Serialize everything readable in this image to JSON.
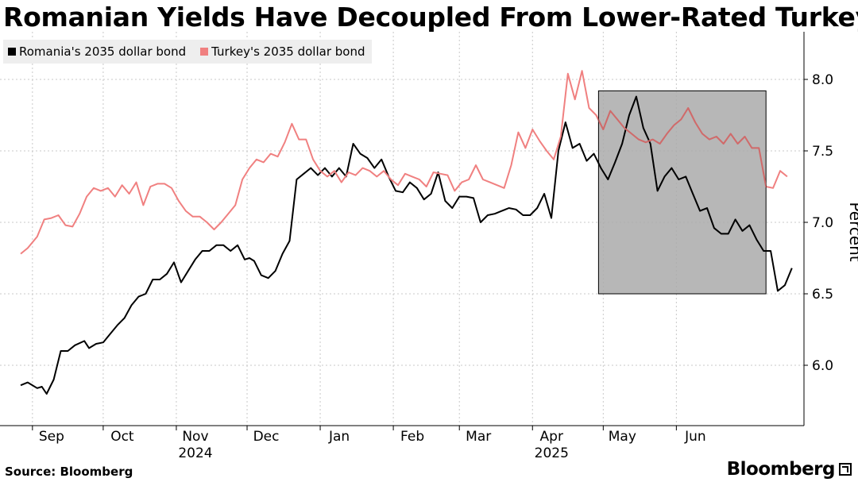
{
  "chart_data": {
    "type": "line",
    "title": "Romanian Yields Have Decoupled From Lower-Rated Turkey",
    "ylabel": "Percent",
    "ylim": [
      5.7,
      8.3
    ],
    "yticks": [
      6.0,
      6.5,
      7.0,
      7.5,
      8.0
    ],
    "ytick_labels": [
      "6.0",
      "6.5",
      "7.0",
      "7.5",
      "8.0"
    ],
    "x_range": [
      "2024-08-27",
      "2025-07-15"
    ],
    "month_ticks": [
      {
        "label": "Sep",
        "date": "2024-09-01"
      },
      {
        "label": "Oct",
        "date": "2024-10-01"
      },
      {
        "label": "Nov",
        "date": "2024-11-01"
      },
      {
        "label": "Dec",
        "date": "2024-12-01"
      },
      {
        "label": "Jan",
        "date": "2025-01-01"
      },
      {
        "label": "Feb",
        "date": "2025-02-01"
      },
      {
        "label": "Mar",
        "date": "2025-03-01"
      },
      {
        "label": "Apr",
        "date": "2025-04-01"
      },
      {
        "label": "May",
        "date": "2025-05-01"
      },
      {
        "label": "Jun",
        "date": "2025-06-01"
      }
    ],
    "year_labels": [
      {
        "label": "2024",
        "date": "2024-11-01"
      },
      {
        "label": "2025",
        "date": "2025-04-01"
      }
    ],
    "grid": "vertical dotted at month starts, horizontal dotted at y ticks",
    "legend_position": "top-left",
    "shaded_region": {
      "x_start": "2025-04-29",
      "x_end": "2025-07-09",
      "y_start": 6.5,
      "y_end": 7.92,
      "color": "#aaaaaa"
    },
    "series": [
      {
        "name": "Romania's 2035 dollar bond",
        "color": "#000000",
        "points": [
          [
            "2024-08-27",
            5.86
          ],
          [
            "2024-08-30",
            5.88
          ],
          [
            "2024-09-03",
            5.84
          ],
          [
            "2024-09-05",
            5.85
          ],
          [
            "2024-09-07",
            5.8
          ],
          [
            "2024-09-10",
            5.9
          ],
          [
            "2024-09-13",
            6.1
          ],
          [
            "2024-09-16",
            6.1
          ],
          [
            "2024-09-19",
            6.14
          ],
          [
            "2024-09-23",
            6.17
          ],
          [
            "2024-09-25",
            6.12
          ],
          [
            "2024-09-28",
            6.15
          ],
          [
            "2024-10-01",
            6.16
          ],
          [
            "2024-10-04",
            6.22
          ],
          [
            "2024-10-07",
            6.28
          ],
          [
            "2024-10-10",
            6.33
          ],
          [
            "2024-10-13",
            6.42
          ],
          [
            "2024-10-16",
            6.48
          ],
          [
            "2024-10-19",
            6.5
          ],
          [
            "2024-10-22",
            6.6
          ],
          [
            "2024-10-25",
            6.6
          ],
          [
            "2024-10-28",
            6.64
          ],
          [
            "2024-10-31",
            6.72
          ],
          [
            "2024-11-03",
            6.58
          ],
          [
            "2024-11-06",
            6.66
          ],
          [
            "2024-11-09",
            6.74
          ],
          [
            "2024-11-12",
            6.8
          ],
          [
            "2024-11-15",
            6.8
          ],
          [
            "2024-11-18",
            6.84
          ],
          [
            "2024-11-21",
            6.84
          ],
          [
            "2024-11-24",
            6.8
          ],
          [
            "2024-11-27",
            6.84
          ],
          [
            "2024-11-30",
            6.74
          ],
          [
            "2024-12-02",
            6.75
          ],
          [
            "2024-12-04",
            6.73
          ],
          [
            "2024-12-07",
            6.63
          ],
          [
            "2024-12-10",
            6.61
          ],
          [
            "2024-12-13",
            6.66
          ],
          [
            "2024-12-16",
            6.78
          ],
          [
            "2024-12-19",
            6.87
          ],
          [
            "2024-12-22",
            7.3
          ],
          [
            "2024-12-25",
            7.34
          ],
          [
            "2024-12-28",
            7.38
          ],
          [
            "2024-12-31",
            7.33
          ],
          [
            "2025-01-03",
            7.38
          ],
          [
            "2025-01-06",
            7.32
          ],
          [
            "2025-01-09",
            7.38
          ],
          [
            "2025-01-12",
            7.32
          ],
          [
            "2025-01-15",
            7.55
          ],
          [
            "2025-01-18",
            7.48
          ],
          [
            "2025-01-21",
            7.45
          ],
          [
            "2025-01-24",
            7.38
          ],
          [
            "2025-01-27",
            7.44
          ],
          [
            "2025-01-30",
            7.32
          ],
          [
            "2025-02-02",
            7.22
          ],
          [
            "2025-02-05",
            7.21
          ],
          [
            "2025-02-08",
            7.28
          ],
          [
            "2025-02-11",
            7.24
          ],
          [
            "2025-02-14",
            7.16
          ],
          [
            "2025-02-17",
            7.2
          ],
          [
            "2025-02-20",
            7.35
          ],
          [
            "2025-02-23",
            7.15
          ],
          [
            "2025-02-26",
            7.1
          ],
          [
            "2025-03-01",
            7.18
          ],
          [
            "2025-03-04",
            7.18
          ],
          [
            "2025-03-07",
            7.17
          ],
          [
            "2025-03-10",
            7.0
          ],
          [
            "2025-03-13",
            7.05
          ],
          [
            "2025-03-16",
            7.06
          ],
          [
            "2025-03-19",
            7.08
          ],
          [
            "2025-03-22",
            7.1
          ],
          [
            "2025-03-25",
            7.09
          ],
          [
            "2025-03-28",
            7.05
          ],
          [
            "2025-03-31",
            7.05
          ],
          [
            "2025-04-03",
            7.1
          ],
          [
            "2025-04-06",
            7.2
          ],
          [
            "2025-04-09",
            7.03
          ],
          [
            "2025-04-12",
            7.5
          ],
          [
            "2025-04-15",
            7.7
          ],
          [
            "2025-04-18",
            7.52
          ],
          [
            "2025-04-21",
            7.55
          ],
          [
            "2025-04-24",
            7.43
          ],
          [
            "2025-04-27",
            7.48
          ],
          [
            "2025-04-30",
            7.38
          ],
          [
            "2025-05-03",
            7.3
          ],
          [
            "2025-05-06",
            7.42
          ],
          [
            "2025-05-09",
            7.55
          ],
          [
            "2025-05-12",
            7.75
          ],
          [
            "2025-05-15",
            7.88
          ],
          [
            "2025-05-18",
            7.66
          ],
          [
            "2025-05-21",
            7.55
          ],
          [
            "2025-05-24",
            7.22
          ],
          [
            "2025-05-27",
            7.32
          ],
          [
            "2025-05-30",
            7.38
          ],
          [
            "2025-06-02",
            7.3
          ],
          [
            "2025-06-05",
            7.32
          ],
          [
            "2025-06-08",
            7.2
          ],
          [
            "2025-06-11",
            7.08
          ],
          [
            "2025-06-14",
            7.1
          ],
          [
            "2025-06-17",
            6.96
          ],
          [
            "2025-06-20",
            6.92
          ],
          [
            "2025-06-23",
            6.92
          ],
          [
            "2025-06-26",
            7.02
          ],
          [
            "2025-06-29",
            6.94
          ],
          [
            "2025-07-02",
            6.98
          ],
          [
            "2025-07-05",
            6.88
          ],
          [
            "2025-07-08",
            6.8
          ],
          [
            "2025-07-11",
            6.8
          ],
          [
            "2025-07-14",
            6.52
          ],
          [
            "2025-07-17",
            6.56
          ],
          [
            "2025-07-20",
            6.68
          ]
        ]
      },
      {
        "name": "Turkey's 2035 dollar bond",
        "color": "#f08080",
        "points": [
          [
            "2024-08-27",
            6.78
          ],
          [
            "2024-08-30",
            6.82
          ],
          [
            "2024-09-03",
            6.9
          ],
          [
            "2024-09-06",
            7.02
          ],
          [
            "2024-09-09",
            7.03
          ],
          [
            "2024-09-12",
            7.05
          ],
          [
            "2024-09-15",
            6.98
          ],
          [
            "2024-09-18",
            6.97
          ],
          [
            "2024-09-21",
            7.06
          ],
          [
            "2024-09-24",
            7.18
          ],
          [
            "2024-09-27",
            7.24
          ],
          [
            "2024-09-30",
            7.22
          ],
          [
            "2024-10-03",
            7.24
          ],
          [
            "2024-10-06",
            7.18
          ],
          [
            "2024-10-09",
            7.26
          ],
          [
            "2024-10-12",
            7.2
          ],
          [
            "2024-10-15",
            7.28
          ],
          [
            "2024-10-18",
            7.12
          ],
          [
            "2024-10-21",
            7.25
          ],
          [
            "2024-10-24",
            7.27
          ],
          [
            "2024-10-27",
            7.27
          ],
          [
            "2024-10-30",
            7.24
          ],
          [
            "2024-11-02",
            7.15
          ],
          [
            "2024-11-05",
            7.08
          ],
          [
            "2024-11-08",
            7.04
          ],
          [
            "2024-11-11",
            7.04
          ],
          [
            "2024-11-14",
            7.0
          ],
          [
            "2024-11-17",
            6.95
          ],
          [
            "2024-11-20",
            7.0
          ],
          [
            "2024-11-23",
            7.06
          ],
          [
            "2024-11-26",
            7.12
          ],
          [
            "2024-11-29",
            7.3
          ],
          [
            "2024-12-02",
            7.38
          ],
          [
            "2024-12-05",
            7.44
          ],
          [
            "2024-12-08",
            7.42
          ],
          [
            "2024-12-11",
            7.48
          ],
          [
            "2024-12-14",
            7.46
          ],
          [
            "2024-12-17",
            7.56
          ],
          [
            "2024-12-20",
            7.69
          ],
          [
            "2024-12-23",
            7.58
          ],
          [
            "2024-12-26",
            7.58
          ],
          [
            "2024-12-29",
            7.44
          ],
          [
            "2025-01-01",
            7.36
          ],
          [
            "2025-01-04",
            7.32
          ],
          [
            "2025-01-07",
            7.36
          ],
          [
            "2025-01-10",
            7.28
          ],
          [
            "2025-01-13",
            7.35
          ],
          [
            "2025-01-16",
            7.33
          ],
          [
            "2025-01-19",
            7.38
          ],
          [
            "2025-01-22",
            7.36
          ],
          [
            "2025-01-25",
            7.32
          ],
          [
            "2025-01-28",
            7.36
          ],
          [
            "2025-01-31",
            7.3
          ],
          [
            "2025-02-03",
            7.26
          ],
          [
            "2025-02-06",
            7.34
          ],
          [
            "2025-02-09",
            7.32
          ],
          [
            "2025-02-12",
            7.3
          ],
          [
            "2025-02-15",
            7.25
          ],
          [
            "2025-02-18",
            7.35
          ],
          [
            "2025-02-21",
            7.34
          ],
          [
            "2025-02-24",
            7.33
          ],
          [
            "2025-02-27",
            7.22
          ],
          [
            "2025-03-02",
            7.28
          ],
          [
            "2025-03-05",
            7.3
          ],
          [
            "2025-03-08",
            7.4
          ],
          [
            "2025-03-11",
            7.3
          ],
          [
            "2025-03-14",
            7.28
          ],
          [
            "2025-03-17",
            7.26
          ],
          [
            "2025-03-20",
            7.24
          ],
          [
            "2025-03-23",
            7.4
          ],
          [
            "2025-03-26",
            7.63
          ],
          [
            "2025-03-29",
            7.52
          ],
          [
            "2025-04-01",
            7.65
          ],
          [
            "2025-04-04",
            7.57
          ],
          [
            "2025-04-07",
            7.5
          ],
          [
            "2025-04-10",
            7.44
          ],
          [
            "2025-04-13",
            7.6
          ],
          [
            "2025-04-16",
            8.04
          ],
          [
            "2025-04-19",
            7.86
          ],
          [
            "2025-04-22",
            8.06
          ],
          [
            "2025-04-25",
            7.8
          ],
          [
            "2025-04-28",
            7.75
          ],
          [
            "2025-05-01",
            7.65
          ],
          [
            "2025-05-04",
            7.78
          ],
          [
            "2025-05-07",
            7.72
          ],
          [
            "2025-05-10",
            7.66
          ],
          [
            "2025-05-13",
            7.62
          ],
          [
            "2025-05-16",
            7.58
          ],
          [
            "2025-05-19",
            7.56
          ],
          [
            "2025-05-22",
            7.58
          ],
          [
            "2025-05-25",
            7.55
          ],
          [
            "2025-05-28",
            7.62
          ],
          [
            "2025-05-31",
            7.68
          ],
          [
            "2025-06-03",
            7.72
          ],
          [
            "2025-06-06",
            7.8
          ],
          [
            "2025-06-09",
            7.7
          ],
          [
            "2025-06-12",
            7.62
          ],
          [
            "2025-06-15",
            7.58
          ],
          [
            "2025-06-18",
            7.6
          ],
          [
            "2025-06-21",
            7.55
          ],
          [
            "2025-06-24",
            7.62
          ],
          [
            "2025-06-27",
            7.55
          ],
          [
            "2025-06-30",
            7.6
          ],
          [
            "2025-07-03",
            7.52
          ],
          [
            "2025-07-06",
            7.52
          ],
          [
            "2025-07-09",
            7.25
          ],
          [
            "2025-07-12",
            7.24
          ],
          [
            "2025-07-15",
            7.36
          ],
          [
            "2025-07-18",
            7.32
          ]
        ]
      }
    ]
  },
  "legend": {
    "romania_label": "Romania's 2035 dollar bond",
    "turkey_label": "Turkey's 2035 dollar bond"
  },
  "footer": {
    "source": "Source: Bloomberg",
    "brand": "Bloomberg"
  }
}
